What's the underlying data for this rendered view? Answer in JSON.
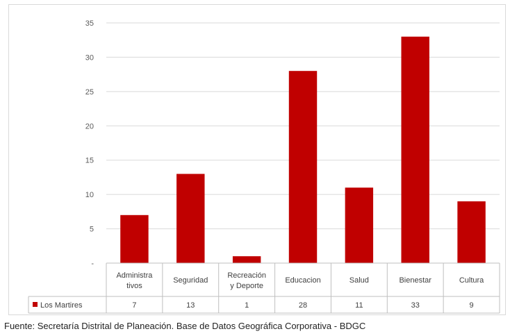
{
  "chart_data": {
    "type": "bar",
    "categories": [
      [
        "Administra",
        "tivos"
      ],
      [
        "Seguridad"
      ],
      [
        "Recreación",
        "y Deporte"
      ],
      [
        "Educacion"
      ],
      [
        "Salud"
      ],
      [
        "Bienestar"
      ],
      [
        "Cultura"
      ]
    ],
    "series": [
      {
        "name": "Los Martires",
        "values": [
          7,
          13,
          1,
          28,
          11,
          33,
          9
        ],
        "color": "#c00000"
      }
    ],
    "table_values": [
      "7",
      "13",
      "1",
      "28",
      "11",
      "33",
      "9"
    ],
    "yticks": [
      "-",
      "5",
      "10",
      "15",
      "20",
      "25",
      "30",
      "35"
    ],
    "ylim": [
      0,
      35
    ],
    "grid": true,
    "legend": "data-table"
  },
  "source": "Fuente: Secretaría Distrital de Planeación. Base de Datos Geográfica Corporativa - BDGC"
}
